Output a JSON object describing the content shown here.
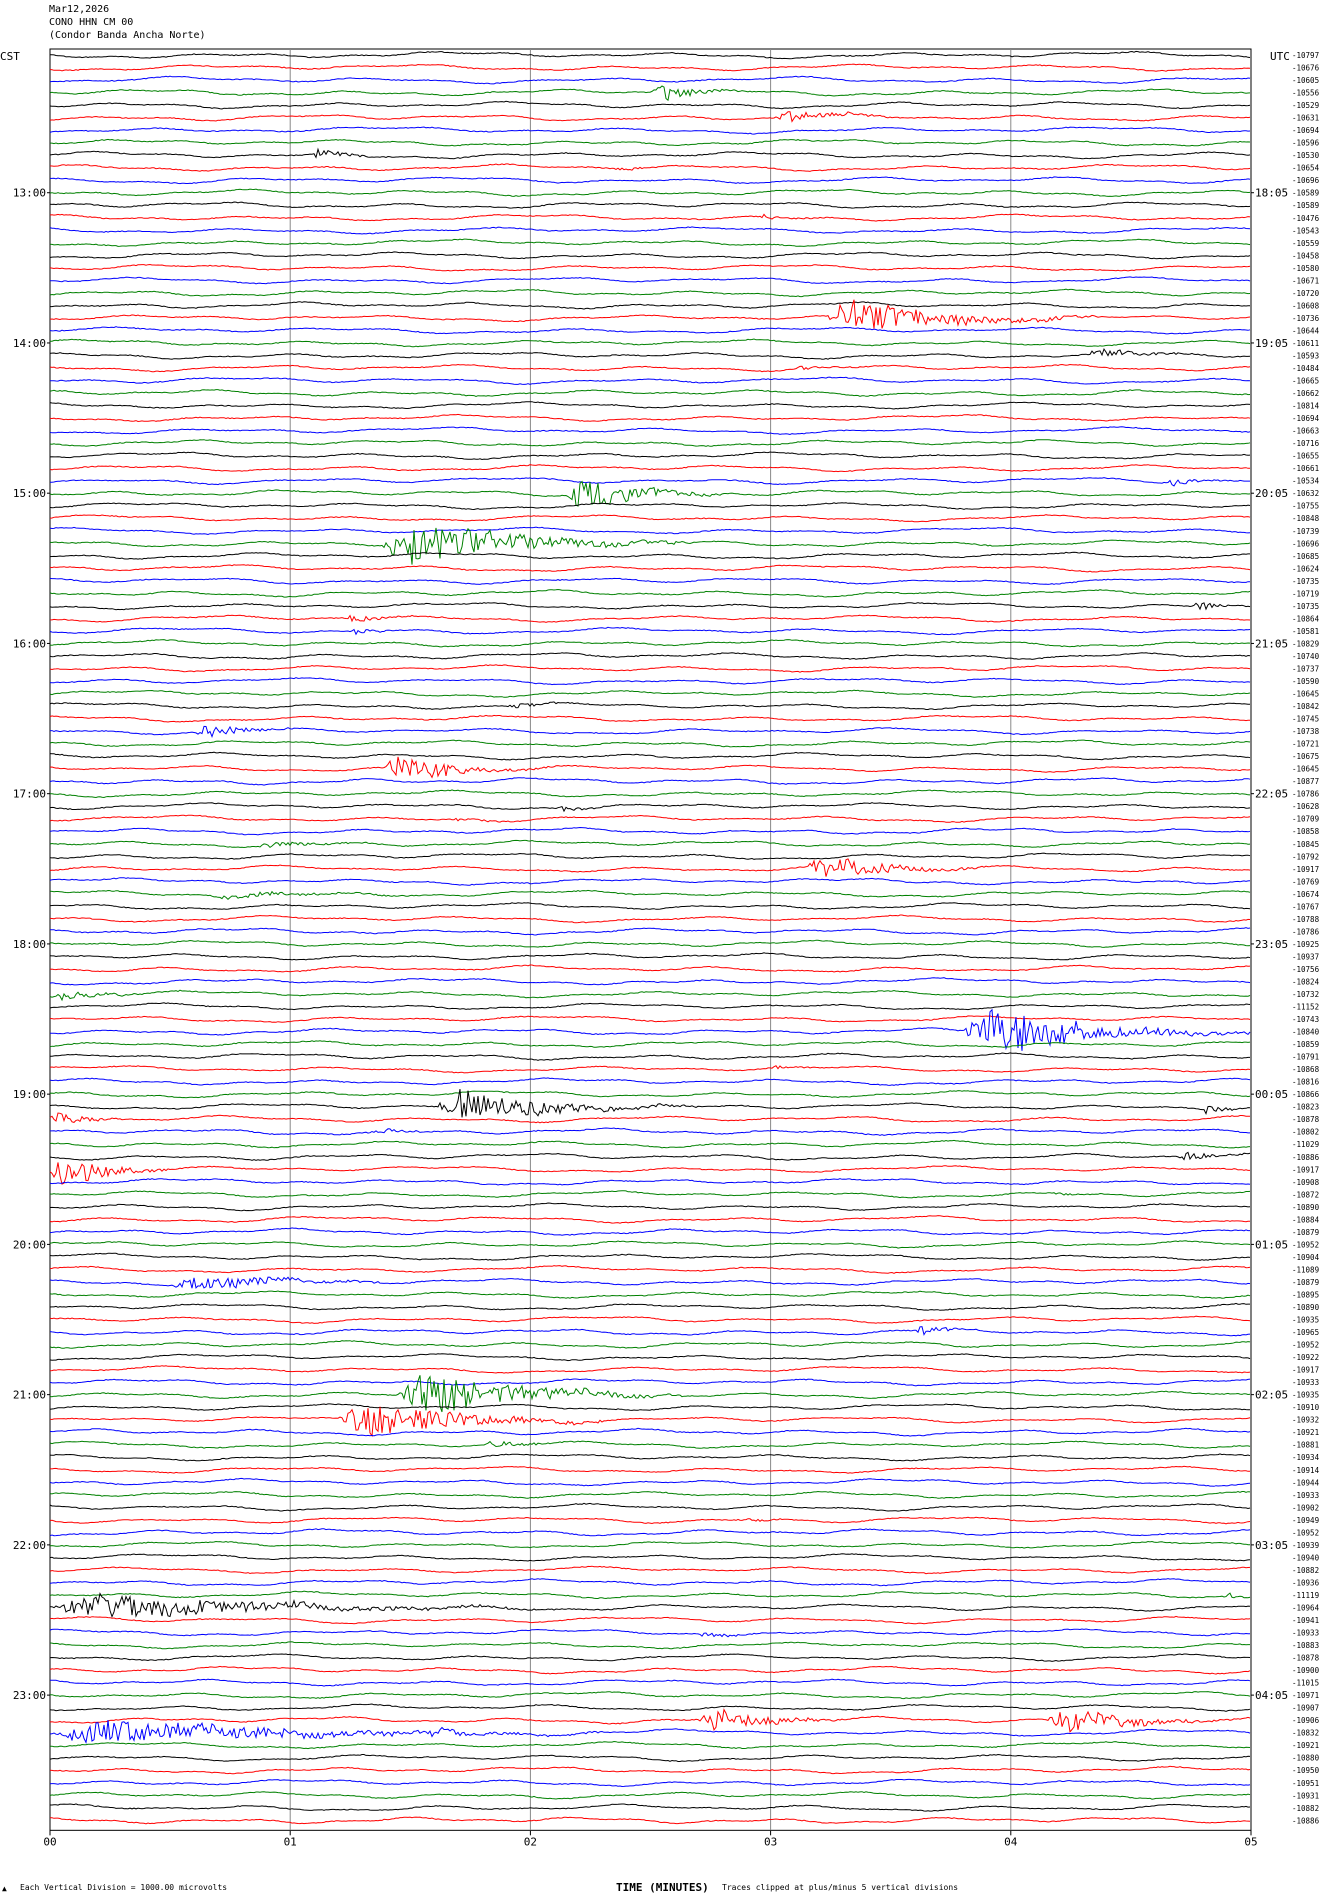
{
  "header": {
    "date": "Mar12,2026",
    "station": "CONO HHN CM 00",
    "site": "(Condor Banda Ancha Norte)"
  },
  "axis_labels": {
    "left": "CST",
    "right": "UTC"
  },
  "footer": {
    "scale_note": "Each Vertical Division = 1000.00 microvolts",
    "xlabel": "TIME (MINUTES)",
    "clip_note": "Traces clipped at plus/minus 5 vertical divisions"
  },
  "colors": {
    "cycle": [
      "#000000",
      "#ff0000",
      "#0000ff",
      "#008000"
    ],
    "grid": "#888888"
  },
  "chart_data": {
    "type": "line",
    "title": "Mar12,2026 CONO HHN CM 00 (Condor Banda Ancha Norte)",
    "xlabel": "TIME (MINUTES)",
    "xlim": [
      0,
      5
    ],
    "x_ticks": [
      "00",
      "01",
      "02",
      "03",
      "04",
      "05"
    ],
    "left_time_labels": [
      "13:00",
      "14:00",
      "15:00",
      "16:00",
      "17:00",
      "18:00",
      "19:00",
      "20:00",
      "21:00",
      "22:00",
      "23:00"
    ],
    "right_time_labels": [
      "18:05",
      "19:05",
      "20:05",
      "21:05",
      "22:05",
      "23:05",
      "00:05",
      "01:05",
      "02:05",
      "03:05",
      "04:05"
    ],
    "traces_per_hour": 12,
    "trace_offsets": [
      "-10797",
      "-10676",
      "-10605",
      "-10556",
      "-10529",
      "-10631",
      "-10694",
      "-10596",
      "-10530",
      "-10654",
      "-10696",
      "-10589",
      "-10589",
      "-10476",
      "-10543",
      "-10559",
      "-10458",
      "-10580",
      "-10671",
      "-10720",
      "-10608",
      "-10736",
      "-10644",
      "-10611",
      "-10593",
      "-10484",
      "-10665",
      "-10662",
      "-10814",
      "-10694",
      "-10663",
      "-10716",
      "-10655",
      "-10661",
      "-10534",
      "-10632",
      "-10755",
      "-10848",
      "-10739",
      "-10696",
      "-10685",
      "-10624",
      "-10735",
      "-10719",
      "-10735",
      "-10864",
      "-10581",
      "-10829",
      "-10740",
      "-10737",
      "-10590",
      "-10645",
      "-10842",
      "-10745",
      "-10738",
      "-10721",
      "-10675",
      "-10645",
      "-10877",
      "-10786",
      "-10628",
      "-10709",
      "-10858",
      "-10845",
      "-10792",
      "-10917",
      "-10769",
      "-10674",
      "-10767",
      "-10788",
      "-10786",
      "-10925",
      "-10937",
      "-10756",
      "-10824",
      "-10732",
      "-11152",
      "-10743",
      "-10840",
      "-10859",
      "-10791",
      "-10868",
      "-10816",
      "-10866",
      "-10823",
      "-10878",
      "-10802",
      "-11029",
      "-10886",
      "-10917",
      "-10908",
      "-10872",
      "-10890",
      "-10884",
      "-10879",
      "-10952",
      "-10904",
      "-11089",
      "-10879",
      "-10895",
      "-10890",
      "-10935",
      "-10965",
      "-10952",
      "-10922",
      "-10917",
      "-10933",
      "-10935",
      "-10910",
      "-10932",
      "-10921",
      "-10881",
      "-10934",
      "-10914",
      "-10944",
      "-10933",
      "-10902",
      "-10949",
      "-10952",
      "-10939",
      "-10940",
      "-10882",
      "-10936",
      "-11119",
      "-10964",
      "-10941",
      "-10933",
      "-10883",
      "-10878",
      "-10900",
      "-11015",
      "-10971",
      "-10907",
      "-10906",
      "-10832",
      "-10921",
      "-10880",
      "-10950",
      "-10951",
      "-10931",
      "-10882",
      "-10886"
    ],
    "events": [
      {
        "trace": 3,
        "start": 2.5,
        "dur": 0.45,
        "amp": 1.6
      },
      {
        "trace": 5,
        "start": 3.0,
        "dur": 0.55,
        "amp": 1.8
      },
      {
        "trace": 8,
        "start": 1.08,
        "dur": 0.35,
        "amp": 0.9
      },
      {
        "trace": 9,
        "start": 2.35,
        "dur": 0.25,
        "amp": 0.5
      },
      {
        "trace": 13,
        "start": 2.95,
        "dur": 0.25,
        "amp": 0.5
      },
      {
        "trace": 21,
        "start": 3.22,
        "dur": 1.15,
        "amp": 3.8
      },
      {
        "trace": 24,
        "start": 4.3,
        "dur": 0.65,
        "amp": 0.9
      },
      {
        "trace": 25,
        "start": 3.1,
        "dur": 0.3,
        "amp": 0.5
      },
      {
        "trace": 35,
        "start": 2.15,
        "dur": 0.7,
        "amp": 3.6
      },
      {
        "trace": 34,
        "start": 4.65,
        "dur": 0.25,
        "amp": 0.9
      },
      {
        "trace": 39,
        "start": 1.38,
        "dur": 1.3,
        "amp": 4.5
      },
      {
        "trace": 44,
        "start": 4.75,
        "dur": 0.25,
        "amp": 1.1
      },
      {
        "trace": 45,
        "start": 1.2,
        "dur": 0.45,
        "amp": 0.8
      },
      {
        "trace": 46,
        "start": 1.25,
        "dur": 0.25,
        "amp": 0.6
      },
      {
        "trace": 52,
        "start": 1.9,
        "dur": 0.35,
        "amp": 0.6
      },
      {
        "trace": 54,
        "start": 0.6,
        "dur": 0.45,
        "amp": 1.7
      },
      {
        "trace": 57,
        "start": 1.38,
        "dur": 0.75,
        "amp": 2.5
      },
      {
        "trace": 60,
        "start": 2.1,
        "dur": 0.3,
        "amp": 0.7
      },
      {
        "trace": 61,
        "start": 1.68,
        "dur": 0.3,
        "amp": 0.5
      },
      {
        "trace": 63,
        "start": 0.85,
        "dur": 0.6,
        "amp": 0.6
      },
      {
        "trace": 65,
        "start": 3.15,
        "dur": 0.75,
        "amp": 2.6
      },
      {
        "trace": 67,
        "start": 0.65,
        "dur": 1.0,
        "amp": 0.6
      },
      {
        "trace": 75,
        "start": 0.0,
        "dur": 0.6,
        "amp": 0.9
      },
      {
        "trace": 78,
        "start": 3.8,
        "dur": 1.2,
        "amp": 5.0
      },
      {
        "trace": 81,
        "start": 3.0,
        "dur": 0.2,
        "amp": 0.5
      },
      {
        "trace": 84,
        "start": 1.6,
        "dur": 1.1,
        "amp": 3.4
      },
      {
        "trace": 84,
        "start": 4.8,
        "dur": 0.2,
        "amp": 1.2
      },
      {
        "trace": 85,
        "start": 0.0,
        "dur": 0.4,
        "amp": 1.5
      },
      {
        "trace": 86,
        "start": 1.3,
        "dur": 0.5,
        "amp": 0.6
      },
      {
        "trace": 88,
        "start": 4.7,
        "dur": 0.3,
        "amp": 1.4
      },
      {
        "trace": 89,
        "start": 0.0,
        "dur": 0.5,
        "amp": 3.8
      },
      {
        "trace": 91,
        "start": 4.15,
        "dur": 0.2,
        "amp": 0.5
      },
      {
        "trace": 98,
        "start": 0.5,
        "dur": 0.9,
        "amp": 2.0
      },
      {
        "trace": 102,
        "start": 3.6,
        "dur": 0.3,
        "amp": 1.0
      },
      {
        "trace": 107,
        "start": 1.45,
        "dur": 1.2,
        "amp": 4.6
      },
      {
        "trace": 109,
        "start": 1.2,
        "dur": 1.1,
        "amp": 4.0
      },
      {
        "trace": 111,
        "start": 1.8,
        "dur": 0.4,
        "amp": 0.8
      },
      {
        "trace": 117,
        "start": 2.85,
        "dur": 0.3,
        "amp": 0.5
      },
      {
        "trace": 124,
        "start": 0.0,
        "dur": 2.1,
        "amp": 2.5
      },
      {
        "trace": 123,
        "start": 4.9,
        "dur": 0.1,
        "amp": 1.0
      },
      {
        "trace": 126,
        "start": 2.7,
        "dur": 0.3,
        "amp": 0.6
      },
      {
        "trace": 133,
        "start": 2.7,
        "dur": 0.6,
        "amp": 2.6
      },
      {
        "trace": 133,
        "start": 4.15,
        "dur": 0.85,
        "amp": 2.4
      },
      {
        "trace": 134,
        "start": 0.0,
        "dur": 2.3,
        "amp": 2.4
      },
      {
        "trace": 134,
        "start": 1.55,
        "dur": 0.3,
        "amp": 1.4
      }
    ]
  }
}
